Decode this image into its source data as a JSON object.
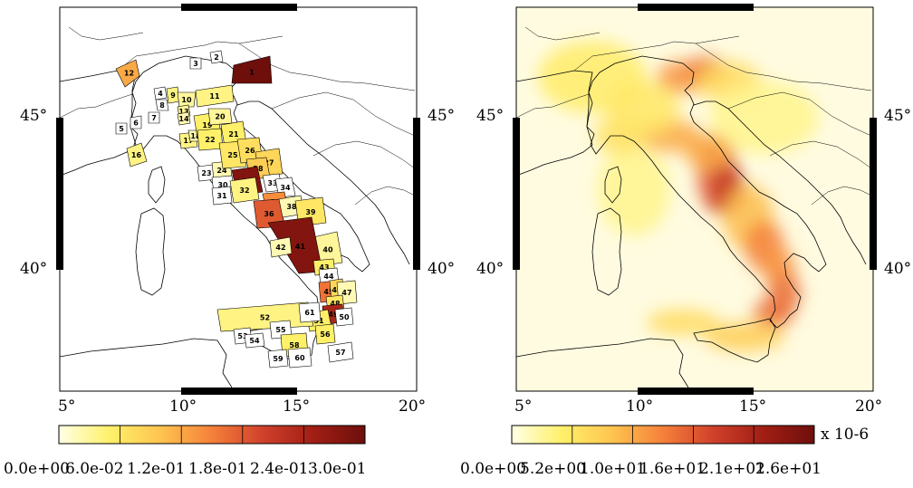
{
  "left_map": {
    "lat_labels": [
      "45°",
      "40°"
    ],
    "lon_labels": [
      "5°",
      "10°",
      "15°",
      "20°"
    ],
    "zones": [
      {
        "id": "1",
        "level": 0.3
      },
      {
        "id": "2",
        "level": 0
      },
      {
        "id": "3",
        "level": 0
      },
      {
        "id": "4",
        "level": 0
      },
      {
        "id": "5",
        "level": 0
      },
      {
        "id": "6",
        "level": 0
      },
      {
        "id": "7",
        "level": 0
      },
      {
        "id": "8",
        "level": 0
      },
      {
        "id": "9",
        "level": 0.04
      },
      {
        "id": "10",
        "level": 0.03
      },
      {
        "id": "11",
        "level": 0.04
      },
      {
        "id": "12",
        "level": 0.12
      },
      {
        "id": "13",
        "level": 0.03
      },
      {
        "id": "14",
        "level": 0.02
      },
      {
        "id": "16",
        "level": 0.04
      },
      {
        "id": "17",
        "level": 0.04
      },
      {
        "id": "18",
        "level": 0.02
      },
      {
        "id": "19",
        "level": 0.05
      },
      {
        "id": "20",
        "level": 0.03
      },
      {
        "id": "21",
        "level": 0.05
      },
      {
        "id": "22",
        "level": 0.05
      },
      {
        "id": "23",
        "level": 0
      },
      {
        "id": "24",
        "level": 0.02
      },
      {
        "id": "25",
        "level": 0.06
      },
      {
        "id": "26",
        "level": 0.07
      },
      {
        "id": "27",
        "level": 0.08
      },
      {
        "id": "28",
        "level": 0.09
      },
      {
        "id": "29",
        "level": 0.28
      },
      {
        "id": "30",
        "level": 0
      },
      {
        "id": "31",
        "level": 0
      },
      {
        "id": "32",
        "level": 0.04
      },
      {
        "id": "33",
        "level": 0
      },
      {
        "id": "34",
        "level": 0
      },
      {
        "id": "35",
        "level": 0.14
      },
      {
        "id": "36",
        "level": 0.18
      },
      {
        "id": "38",
        "level": 0.02
      },
      {
        "id": "39",
        "level": 0.06
      },
      {
        "id": "40",
        "level": 0.03
      },
      {
        "id": "41",
        "level": 0.28
      },
      {
        "id": "42",
        "level": 0.02
      },
      {
        "id": "43",
        "level": 0.05
      },
      {
        "id": "44",
        "level": 0
      },
      {
        "id": "45",
        "level": 0.16
      },
      {
        "id": "46",
        "level": 0.08
      },
      {
        "id": "47",
        "level": 0.02
      },
      {
        "id": "48",
        "level": 0.06
      },
      {
        "id": "49",
        "level": 0.24
      },
      {
        "id": "50",
        "level": 0
      },
      {
        "id": "51",
        "level": 0.05
      },
      {
        "id": "52",
        "level": 0.04
      },
      {
        "id": "53",
        "level": 0
      },
      {
        "id": "54",
        "level": 0
      },
      {
        "id": "55",
        "level": 0
      },
      {
        "id": "56",
        "level": 0.05
      },
      {
        "id": "57",
        "level": 0
      },
      {
        "id": "58",
        "level": 0.05
      },
      {
        "id": "59",
        "level": 0
      },
      {
        "id": "60",
        "level": 0
      },
      {
        "id": "61",
        "level": 0
      }
    ]
  },
  "right_map": {
    "lat_labels": [
      "45°",
      "40°"
    ],
    "lon_labels": [
      "5°",
      "10°",
      "15°",
      "20°"
    ]
  },
  "left_colorbar": {
    "tick_labels": [
      "0.0e+00",
      "6.0e-02",
      "1.2e-01",
      "1.8e-01",
      "2.4e-01",
      "3.0e-01"
    ]
  },
  "right_colorbar": {
    "tick_labels": [
      "0.0e+00",
      "5.2e+00",
      "1.0e+01",
      "1.6e+01",
      "2.1e+01",
      "2.6e+01"
    ],
    "unit": "x 10-6"
  },
  "colors": {
    "scale": [
      "#ffffe5",
      "#fff06a",
      "#fec44f",
      "#f5803a",
      "#d0402b",
      "#a01e14",
      "#6e0f0c"
    ]
  }
}
